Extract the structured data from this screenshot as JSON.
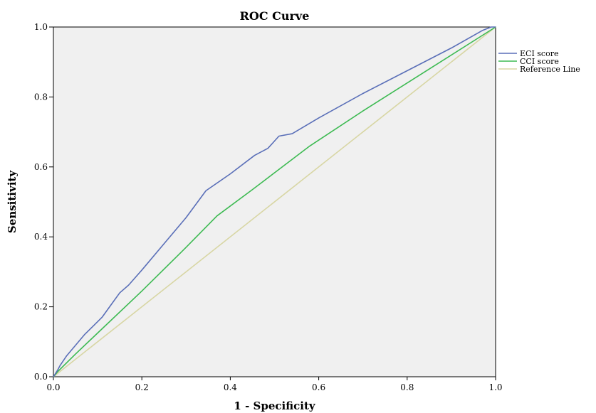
{
  "chart_data": {
    "type": "line",
    "title": "ROC Curve",
    "xlabel": "1 - Specificity",
    "ylabel": "Sensitivity",
    "xlim": [
      0,
      1
    ],
    "ylim": [
      0,
      1
    ],
    "xticks": [
      "0.0",
      "0.2",
      "0.4",
      "0.6",
      "0.8",
      "1.0"
    ],
    "yticks": [
      "0.0",
      "0.2",
      "0.4",
      "0.6",
      "0.8",
      "1.0"
    ],
    "legend_position": "right",
    "grid": false,
    "plot_background": "#f0f0f0",
    "series": [
      {
        "name": "ECI score",
        "color": "#5a6fb8",
        "x": [
          0,
          0.01,
          0.015,
          0.03,
          0.05,
          0.07,
          0.09,
          0.11,
          0.13,
          0.15,
          0.17,
          0.2,
          0.25,
          0.3,
          0.345,
          0.4,
          0.455,
          0.485,
          0.51,
          0.54,
          0.6,
          0.7,
          0.8,
          0.9,
          0.97,
          0.99,
          1.0
        ],
        "y": [
          0,
          0.02,
          0.032,
          0.06,
          0.09,
          0.12,
          0.145,
          0.17,
          0.205,
          0.24,
          0.262,
          0.305,
          0.38,
          0.455,
          0.532,
          0.58,
          0.633,
          0.653,
          0.688,
          0.695,
          0.74,
          0.81,
          0.875,
          0.94,
          0.99,
          1.0,
          1.0
        ]
      },
      {
        "name": "CCI score",
        "color": "#3dba52",
        "x": [
          0,
          0.01,
          0.05,
          0.1,
          0.2,
          0.3,
          0.37,
          0.45,
          0.58,
          0.7,
          0.85,
          1.0
        ],
        "y": [
          0,
          0.015,
          0.065,
          0.125,
          0.245,
          0.37,
          0.46,
          0.535,
          0.66,
          0.76,
          0.88,
          1.0
        ]
      },
      {
        "name": "Reference Line",
        "color": "#d8d6a4",
        "x": [
          0,
          1
        ],
        "y": [
          0,
          1
        ]
      }
    ]
  }
}
